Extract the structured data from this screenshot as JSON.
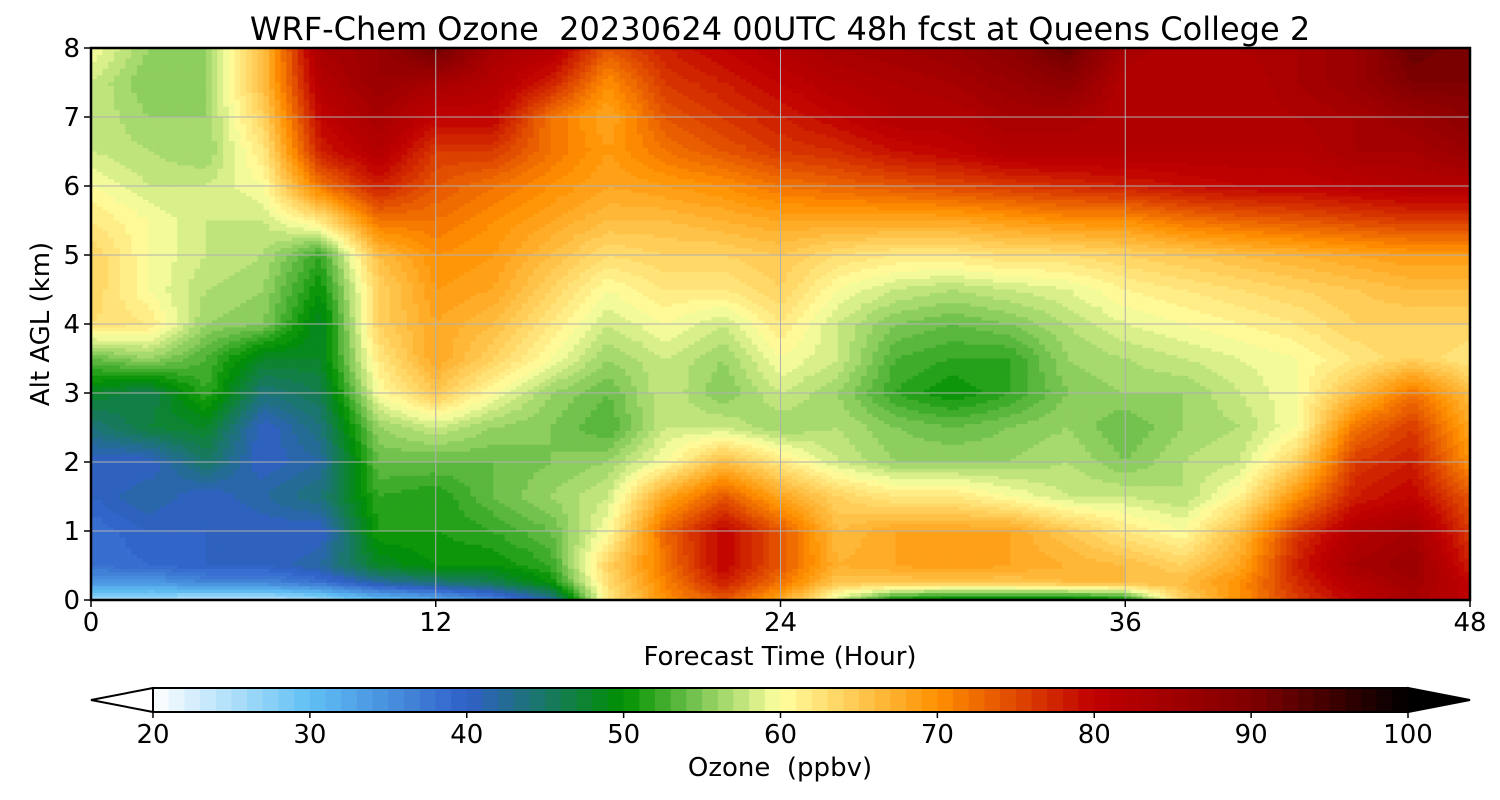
{
  "chart_data": {
    "type": "heatmap",
    "title": "WRF-Chem Ozone  20230624 00UTC 48h fcst at Queens College 2",
    "xlabel": "Forecast Time (Hour)",
    "ylabel": "Alt AGL (km)",
    "xlim": [
      0,
      48
    ],
    "ylim": [
      0,
      8
    ],
    "x_ticks": [
      0,
      12,
      24,
      36,
      48
    ],
    "y_ticks": [
      0,
      1,
      2,
      3,
      4,
      5,
      6,
      7,
      8
    ],
    "grid": true,
    "colorbar": {
      "label": "Ozone  (ppbv)",
      "range": [
        20,
        100
      ],
      "ticks": [
        20,
        30,
        40,
        50,
        60,
        70,
        80,
        90,
        100
      ],
      "extend": "both",
      "stops": [
        {
          "v": 20,
          "c": "#ffffff"
        },
        {
          "v": 30,
          "c": "#60c0f4"
        },
        {
          "v": 40,
          "c": "#3060c8"
        },
        {
          "v": 50,
          "c": "#009000"
        },
        {
          "v": 55,
          "c": "#80c858"
        },
        {
          "v": 60,
          "c": "#ffffa0"
        },
        {
          "v": 70,
          "c": "#ff9000"
        },
        {
          "v": 80,
          "c": "#c00000"
        },
        {
          "v": 90,
          "c": "#800000"
        },
        {
          "v": 100,
          "c": "#000000"
        }
      ]
    },
    "x": [
      0,
      2,
      4,
      6,
      8,
      10,
      12,
      14,
      16,
      18,
      20,
      22,
      24,
      26,
      28,
      30,
      32,
      34,
      36,
      38,
      40,
      42,
      44,
      46,
      48
    ],
    "y": [
      0,
      0.25,
      0.5,
      1,
      1.5,
      2,
      2.5,
      3,
      3.5,
      4,
      4.5,
      5,
      5.5,
      6,
      6.5,
      7,
      7.5,
      8
    ],
    "z": [
      [
        26,
        26,
        24,
        24,
        26,
        30,
        32,
        36,
        42,
        62,
        70,
        74,
        68,
        58,
        50,
        48,
        48,
        48,
        50,
        64,
        70,
        76,
        80,
        84,
        80
      ],
      [
        34,
        34,
        36,
        36,
        38,
        42,
        44,
        46,
        50,
        63,
        71,
        78,
        72,
        65,
        65,
        65,
        65,
        66,
        66,
        66,
        70,
        77,
        82,
        85,
        80
      ],
      [
        38,
        39,
        40,
        40,
        42,
        48,
        50,
        50,
        52,
        64,
        72,
        80,
        74,
        67,
        68,
        69,
        68,
        67,
        66,
        64,
        68,
        78,
        84,
        86,
        78
      ],
      [
        38,
        40,
        40,
        40,
        40,
        51,
        51,
        52,
        54,
        60,
        73,
        80,
        74,
        66,
        68,
        68,
        68,
        65,
        62,
        60,
        66,
        76,
        82,
        84,
        76
      ],
      [
        40,
        42,
        40,
        42,
        44,
        52,
        51,
        54,
        56,
        58,
        68,
        74,
        68,
        64,
        62,
        62,
        60,
        58,
        58,
        57,
        61,
        70,
        78,
        80,
        74
      ],
      [
        40,
        40,
        45,
        40,
        42,
        54,
        54,
        54,
        55,
        56,
        60,
        66,
        62,
        58,
        56,
        56,
        56,
        57,
        55,
        57,
        58,
        64,
        76,
        78,
        70
      ],
      [
        44,
        47,
        48,
        40,
        44,
        56,
        58,
        56,
        55,
        53,
        58,
        58,
        56,
        57,
        55,
        54,
        55,
        56,
        54,
        56,
        57,
        60,
        72,
        76,
        68
      ],
      [
        48,
        46,
        52,
        44,
        46,
        60,
        65,
        60,
        56,
        54,
        58,
        55,
        58,
        56,
        52,
        50,
        52,
        55,
        56,
        56,
        58,
        60,
        66,
        72,
        66
      ],
      [
        54,
        56,
        53,
        48,
        48,
        62,
        68,
        64,
        60,
        56,
        58,
        56,
        60,
        58,
        53,
        52,
        52,
        56,
        57,
        58,
        59,
        60,
        62,
        64,
        62
      ],
      [
        63,
        62,
        56,
        55,
        48,
        64,
        68,
        66,
        62,
        58,
        60,
        58,
        62,
        58,
        55,
        54,
        55,
        57,
        59,
        60,
        61,
        62,
        64,
        64,
        64
      ],
      [
        64,
        60,
        57,
        56,
        50,
        64,
        69,
        68,
        64,
        60,
        62,
        62,
        64,
        60,
        58,
        57,
        58,
        59,
        61,
        62,
        63,
        64,
        65,
        66,
        66
      ],
      [
        64,
        60,
        58,
        57,
        52,
        66,
        70,
        69,
        66,
        63,
        64,
        64,
        65,
        63,
        62,
        62,
        63,
        63,
        64,
        65,
        66,
        67,
        68,
        69,
        69
      ],
      [
        62,
        60,
        58,
        58,
        62,
        72,
        72,
        70,
        68,
        66,
        66,
        67,
        68,
        68,
        68,
        68,
        69,
        70,
        70,
        72,
        73,
        74,
        75,
        76,
        76
      ],
      [
        60,
        58,
        58,
        60,
        72,
        78,
        74,
        72,
        70,
        68,
        69,
        70,
        72,
        73,
        74,
        75,
        76,
        77,
        78,
        79,
        80,
        80,
        81,
        82,
        82
      ],
      [
        58,
        57,
        56,
        62,
        78,
        82,
        76,
        76,
        72,
        69,
        72,
        74,
        76,
        77,
        79,
        80,
        82,
        82,
        82,
        82,
        82,
        82,
        84,
        84,
        86
      ],
      [
        58,
        56,
        56,
        64,
        80,
        84,
        80,
        80,
        72,
        68,
        74,
        76,
        78,
        80,
        82,
        82,
        84,
        84,
        82,
        82,
        82,
        83,
        84,
        86,
        88
      ],
      [
        58,
        55,
        56,
        66,
        82,
        86,
        84,
        82,
        78,
        70,
        76,
        78,
        80,
        82,
        83,
        84,
        86,
        88,
        82,
        82,
        82,
        84,
        86,
        90,
        90
      ],
      [
        60,
        56,
        56,
        66,
        84,
        86,
        92,
        84,
        82,
        74,
        78,
        80,
        82,
        84,
        85,
        86,
        88,
        92,
        84,
        82,
        83,
        84,
        86,
        92,
        90
      ]
    ]
  }
}
